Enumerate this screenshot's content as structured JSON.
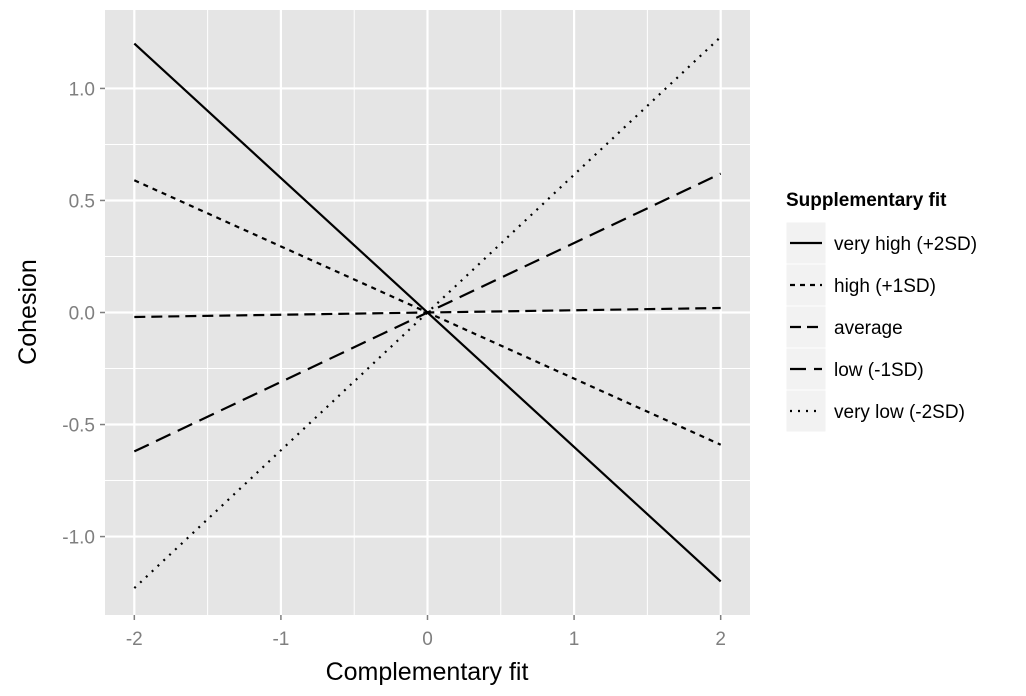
{
  "chart_data": {
    "type": "line",
    "xlabel": "Complementary fit",
    "ylabel": "Cohesion",
    "xlim": [
      -2.2,
      2.2
    ],
    "ylim": [
      -1.35,
      1.35
    ],
    "xticks": [
      -2,
      -1,
      0,
      1,
      2
    ],
    "xtick_labels": [
      "-2",
      "-1",
      "0",
      "1",
      "2"
    ],
    "yticks": [
      -1.0,
      -0.5,
      0.0,
      0.5,
      1.0
    ],
    "ytick_labels": [
      "-1.0",
      "-0.5",
      "0.0",
      "0.5",
      "1.0"
    ],
    "grid": true,
    "panel_background": "#e5e5e5",
    "grid_color": "#ffffff",
    "line_color": "#000000",
    "legend": {
      "title": "Supplementary fit",
      "placement": "right"
    },
    "x": [
      -2,
      2
    ],
    "series": [
      {
        "name": "very high (+2SD)",
        "values": [
          1.2,
          -1.2
        ],
        "dash": "solid"
      },
      {
        "name": "high (+1SD)",
        "values": [
          0.59,
          -0.59
        ],
        "dash": "short-dash"
      },
      {
        "name": "average",
        "values": [
          -0.02,
          0.02
        ],
        "dash": "dash"
      },
      {
        "name": "low (-1SD)",
        "values": [
          -0.62,
          0.62
        ],
        "dash": "long-dash"
      },
      {
        "name": "very low (-2SD)",
        "values": [
          -1.23,
          1.23
        ],
        "dash": "dotted"
      }
    ]
  }
}
